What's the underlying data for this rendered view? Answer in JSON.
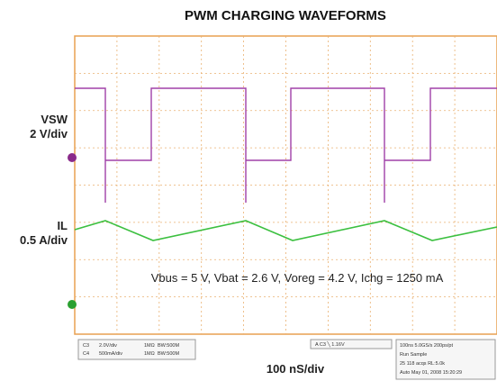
{
  "title": "PWM CHARGING WAVEFORMS",
  "channels": [
    {
      "name": "VSW",
      "scale": "2 V/div"
    },
    {
      "name": "IL",
      "scale": "0.5 A/div"
    }
  ],
  "annotation": "Vbus = 5 V, Vbat = 2.6 V, Voreg = 4.2 V, Ichg = 1250 mA",
  "timebase": "100 nS/div",
  "status": {
    "channel_box": [
      [
        "C3",
        "2.0V/div",
        "1MΩ",
        "BW:500M"
      ],
      [
        "C4",
        "500mA/div",
        "1MΩ",
        "BW:500M"
      ]
    ],
    "trigger": "A  C3  ╲  1.16V",
    "acquisition": [
      "100ns   5.0GS/s   200ps/pt",
      "Run      Sample",
      "25 118 acqs          RL:5.0k",
      "Auto   May 01, 2008     15:20:29"
    ]
  }
}
